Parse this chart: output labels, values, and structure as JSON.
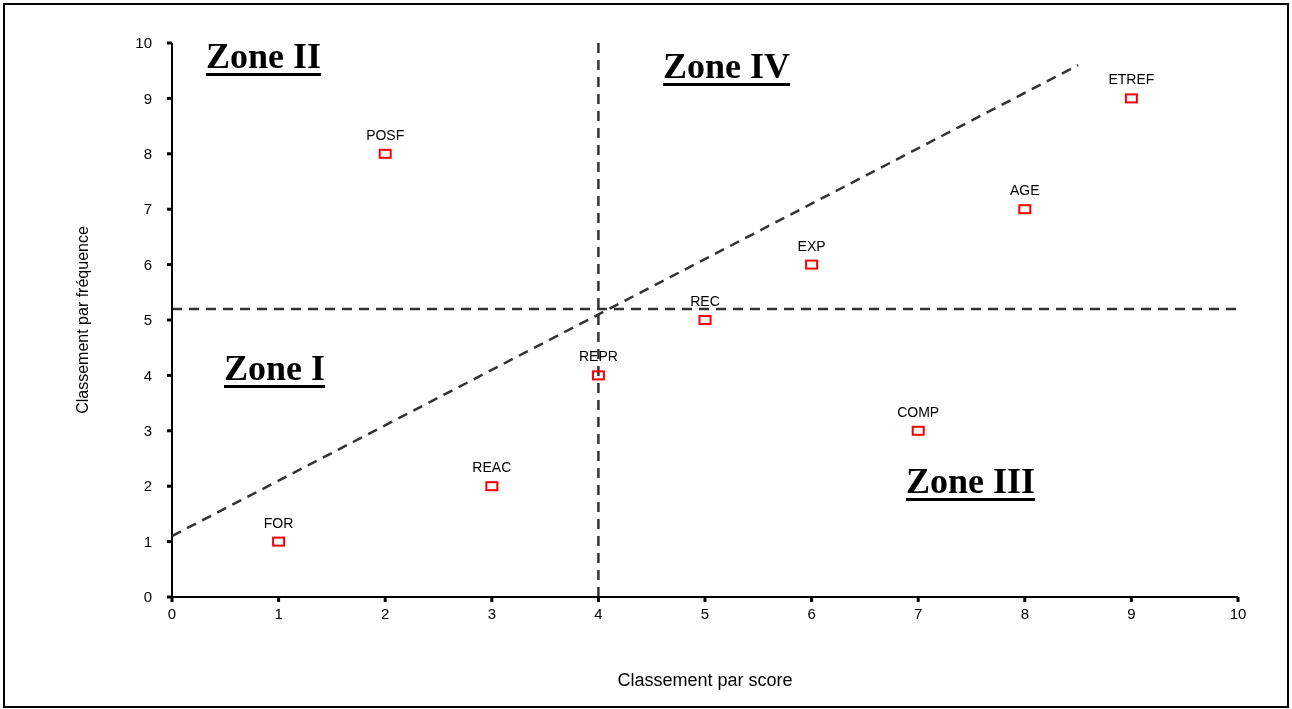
{
  "chart_data": {
    "type": "scatter",
    "xlabel": "Classement par score",
    "ylabel": "Classement par fréquence",
    "xlim": [
      0,
      10
    ],
    "ylim": [
      0,
      10
    ],
    "xticks": [
      0,
      1,
      2,
      3,
      4,
      5,
      6,
      7,
      8,
      9,
      10
    ],
    "yticks": [
      0,
      1,
      2,
      3,
      4,
      5,
      6,
      7,
      8,
      9,
      10
    ],
    "marker": "square",
    "series": [
      {
        "name": "FOR",
        "color": "#ff0000",
        "x": [
          1
        ],
        "values": [
          1
        ]
      },
      {
        "name": "REAC",
        "color": "#ff0000",
        "x": [
          3
        ],
        "values": [
          2
        ]
      },
      {
        "name": "REPR",
        "color": "#ff0000",
        "x": [
          4
        ],
        "values": [
          4
        ]
      },
      {
        "name": "REC",
        "color": "#ff0000",
        "x": [
          5
        ],
        "values": [
          5
        ]
      },
      {
        "name": "EXP",
        "color": "#ff0000",
        "x": [
          6
        ],
        "values": [
          6
        ]
      },
      {
        "name": "AGE",
        "color": "#ff0000",
        "x": [
          8
        ],
        "values": [
          7
        ]
      },
      {
        "name": "ETREF",
        "color": "#ff0000",
        "x": [
          9
        ],
        "values": [
          9
        ]
      },
      {
        "name": "COMP",
        "color": "#ff0000",
        "x": [
          7
        ],
        "values": [
          3
        ]
      },
      {
        "name": "POSF",
        "color": "#ff0000",
        "x": [
          2
        ],
        "values": [
          8
        ]
      },
      {
        "type": "line",
        "color": "#333333",
        "line_style": "dashed",
        "marker": "none",
        "x": [
          0,
          8.5
        ],
        "values": [
          1.1,
          9.6
        ]
      }
    ],
    "ref_lines": [
      {
        "axis": "y",
        "value": 5.2,
        "color": "#333333",
        "line_style": "dashed"
      },
      {
        "axis": "x",
        "value": 4,
        "color": "#333333",
        "line_style": "dashed"
      }
    ],
    "annotations": [
      "Zone II",
      "Zone IV",
      "Zone I",
      "Zone III"
    ]
  }
}
